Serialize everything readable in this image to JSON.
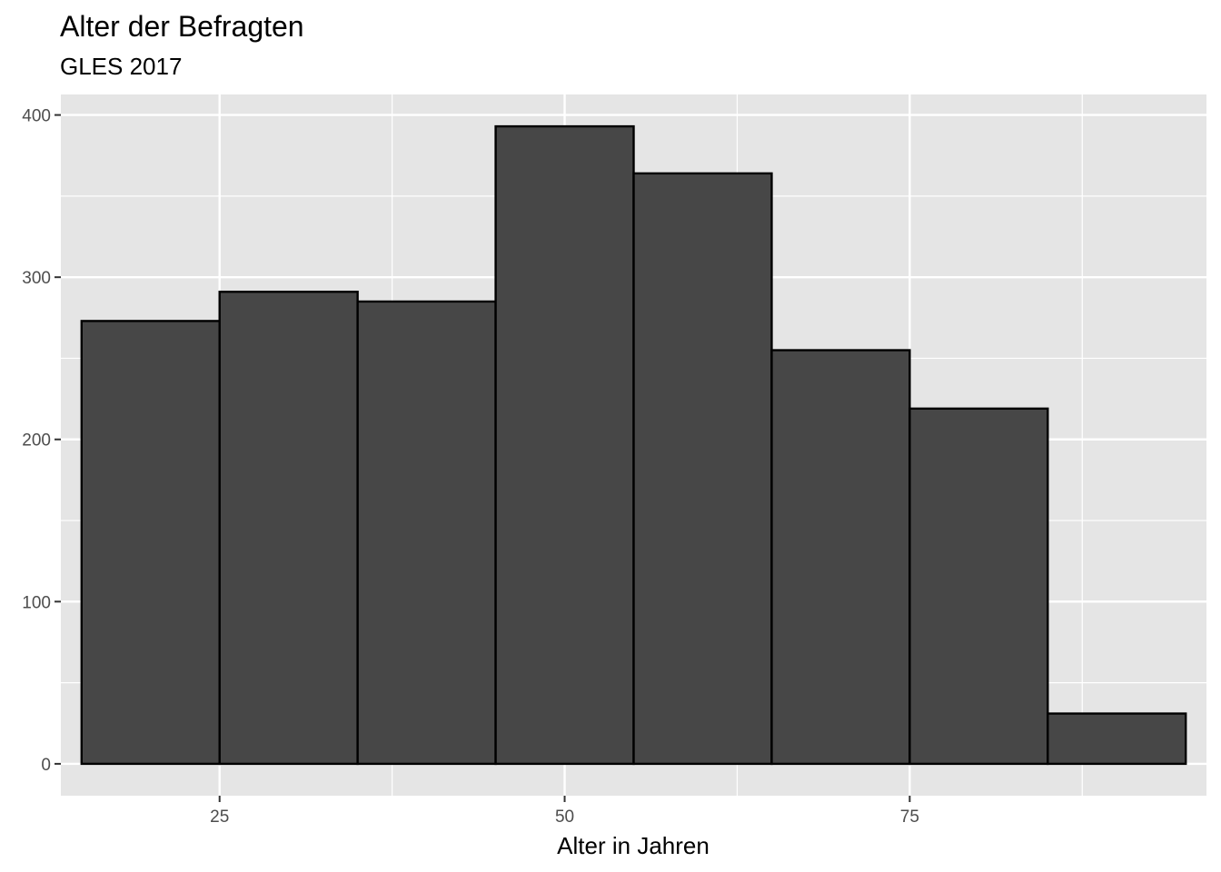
{
  "chart_data": {
    "type": "bar",
    "title": "Alter der Befragten",
    "subtitle": "GLES 2017",
    "xlabel": "Alter in Jahren",
    "ylabel": "",
    "bins": [
      {
        "x0": 15,
        "x1": 25,
        "count": 273
      },
      {
        "x0": 25,
        "x1": 35,
        "count": 291
      },
      {
        "x0": 35,
        "x1": 45,
        "count": 285
      },
      {
        "x0": 45,
        "x1": 55,
        "count": 393
      },
      {
        "x0": 55,
        "x1": 65,
        "count": 364
      },
      {
        "x0": 65,
        "x1": 75,
        "count": 255
      },
      {
        "x0": 75,
        "x1": 85,
        "count": 219
      },
      {
        "x0": 85,
        "x1": 95,
        "count": 31
      }
    ],
    "xlim": [
      13.5,
      96.5
    ],
    "ylim": [
      -19.65,
      412.65
    ],
    "x_ticks": [
      25,
      50,
      75
    ],
    "x_minor": [
      12.5,
      37.5,
      62.5,
      87.5
    ],
    "y_ticks": [
      0,
      100,
      200,
      300,
      400
    ],
    "y_minor": [
      50,
      150,
      250,
      350
    ],
    "grid": true,
    "colors": {
      "panel": "#e5e5e5",
      "grid": "#ffffff",
      "bar_fill": "#474747",
      "bar_outline": "#000000",
      "tick_text": "#4d4d4d"
    }
  }
}
